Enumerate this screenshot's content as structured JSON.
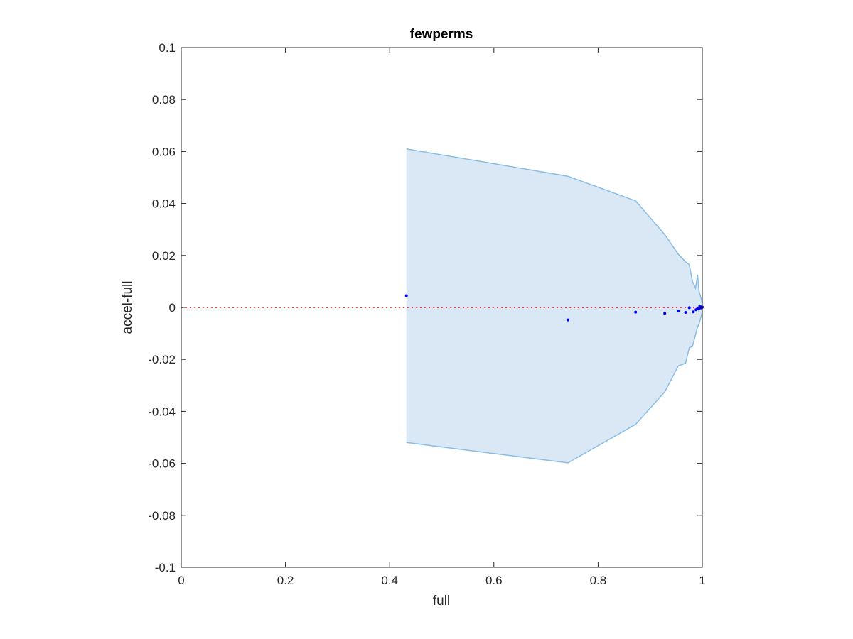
{
  "chart_data": {
    "type": "scatter",
    "title": "fewperms",
    "xlabel": "full",
    "ylabel": "accel-full",
    "xlim": [
      0,
      1
    ],
    "ylim": [
      -0.1,
      0.1
    ],
    "xticks": [
      0,
      0.2,
      0.4,
      0.6,
      0.8,
      1
    ],
    "xtick_labels": [
      "0",
      "0.2",
      "0.4",
      "0.6",
      "0.8",
      "1"
    ],
    "yticks": [
      -0.1,
      -0.08,
      -0.06,
      -0.04,
      -0.02,
      0,
      0.02,
      0.04,
      0.06,
      0.08,
      0.1
    ],
    "ytick_labels": [
      "-0.1",
      "-0.08",
      "-0.06",
      "-0.04",
      "-0.02",
      "0",
      "0.02",
      "0.04",
      "0.06",
      "0.08",
      "0.1"
    ],
    "grid": false,
    "reference_line": {
      "y": 0,
      "style": "dotted",
      "color": "#ff0000"
    },
    "band": {
      "fill": "#d9e8f4",
      "edge": "#87bde6",
      "upper": [
        [
          0.432,
          0.061
        ],
        [
          0.742,
          0.0505
        ],
        [
          0.872,
          0.041
        ],
        [
          0.928,
          0.028
        ],
        [
          0.954,
          0.0205
        ],
        [
          0.968,
          0.0175
        ],
        [
          0.975,
          0.0165
        ],
        [
          0.981,
          0.01
        ],
        [
          0.987,
          0.0075
        ],
        [
          0.991,
          0.0125
        ],
        [
          0.994,
          0.006
        ],
        [
          0.997,
          0.004
        ],
        [
          1.0,
          0.0015
        ]
      ],
      "lower": [
        [
          0.432,
          -0.052
        ],
        [
          0.742,
          -0.0598
        ],
        [
          0.872,
          -0.045
        ],
        [
          0.928,
          -0.0325
        ],
        [
          0.954,
          -0.0225
        ],
        [
          0.968,
          -0.0215
        ],
        [
          0.975,
          -0.0155
        ],
        [
          0.981,
          -0.015
        ],
        [
          0.987,
          -0.0105
        ],
        [
          0.991,
          -0.0075
        ],
        [
          0.994,
          -0.0062
        ],
        [
          0.997,
          -0.004
        ],
        [
          1.0,
          -0.0015
        ]
      ]
    },
    "series": [
      {
        "color": "#0000ff",
        "points": [
          [
            0.432,
            0.0045
          ],
          [
            0.742,
            -0.0048
          ],
          [
            0.872,
            -0.0018
          ],
          [
            0.928,
            -0.0023
          ],
          [
            0.954,
            -0.0014
          ],
          [
            0.968,
            -0.0019
          ],
          [
            0.975,
            -0.0001
          ],
          [
            0.983,
            -0.0017
          ],
          [
            0.988,
            -0.0009
          ],
          [
            0.991,
            -0.0004
          ],
          [
            0.993,
            -0.0006
          ],
          [
            0.995,
            0.0003
          ],
          [
            0.997,
            -0.0002
          ],
          [
            0.998,
            0.0002
          ],
          [
            0.999,
            -0.0001
          ],
          [
            1.0,
            0.0001
          ]
        ]
      }
    ]
  }
}
